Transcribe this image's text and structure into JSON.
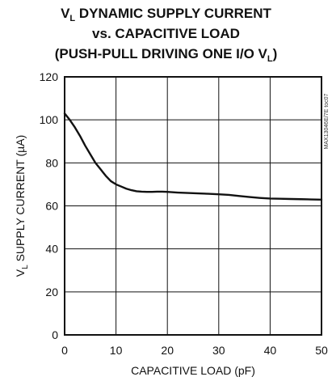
{
  "chart_data": {
    "type": "line",
    "title": {
      "line1_a": "V",
      "line1_sub": "L",
      "line1_b": " DYNAMIC SUPPLY CURRENT",
      "line2": "vs. CAPACITIVE LOAD",
      "line3_a": "(PUSH-PULL DRIVING ONE I/O V",
      "line3_sub": "L",
      "line3_b": ")"
    },
    "xlabel": "CAPACITIVE LOAD (pF)",
    "ylabel_a": "V",
    "ylabel_sub": "L",
    "ylabel_b": " SUPPLY CURRENT (µA)",
    "side_code": "MAX13046E/7E toc07",
    "xlim": [
      0,
      50
    ],
    "ylim": [
      0,
      120
    ],
    "xticks": [
      "0",
      "10",
      "20",
      "30",
      "40",
      "50"
    ],
    "yticks": [
      "0",
      "20",
      "40",
      "60",
      "80",
      "100",
      "120"
    ],
    "grid": true,
    "series": [
      {
        "x": [
          0,
          1,
          2,
          3,
          4,
          5,
          6,
          7,
          8,
          9,
          10,
          11,
          12,
          13,
          14,
          15,
          16,
          17,
          18,
          19,
          20,
          22,
          24,
          26,
          28,
          30,
          32,
          34,
          36,
          38,
          40,
          42,
          44,
          46,
          48,
          50
        ],
        "y": [
          103,
          100,
          96.5,
          92.5,
          88,
          84,
          80,
          77,
          74,
          71.5,
          70,
          69,
          68,
          67.3,
          66.8,
          66.6,
          66.5,
          66.5,
          66.6,
          66.6,
          66.5,
          66.2,
          66,
          65.8,
          65.6,
          65.4,
          65.1,
          64.6,
          64.1,
          63.7,
          63.4,
          63.3,
          63.2,
          63.1,
          63,
          62.9
        ]
      }
    ]
  }
}
